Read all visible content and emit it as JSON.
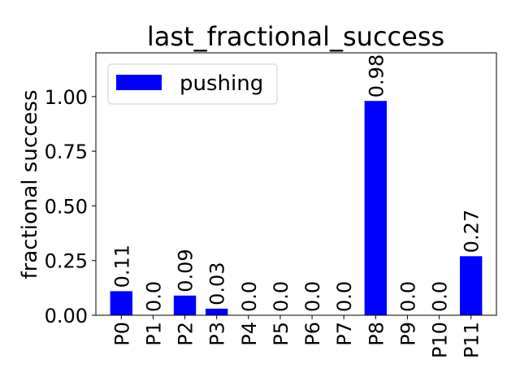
{
  "chart_data": {
    "type": "bar",
    "title": "last_fractional_success",
    "xlabel": "",
    "ylabel": "fractional success",
    "categories": [
      "P0",
      "P1",
      "P2",
      "P3",
      "P4",
      "P5",
      "P6",
      "P7",
      "P8",
      "P9",
      "P10",
      "P11"
    ],
    "series": [
      {
        "name": "pushing",
        "color": "#0000ff",
        "values": [
          0.11,
          0.0,
          0.09,
          0.03,
          0.0,
          0.0,
          0.0,
          0.0,
          0.98,
          0.0,
          0.0,
          0.27
        ],
        "labels": [
          "0.11",
          "0.0",
          "0.09",
          "0.03",
          "0.0",
          "0.0",
          "0.0",
          "0.0",
          "0.98",
          "0.0",
          "0.0",
          "0.27"
        ]
      }
    ],
    "ylim": [
      0,
      1.2
    ],
    "yticks": [
      0.0,
      0.25,
      0.5,
      0.75,
      1.0
    ],
    "ytick_labels": [
      "0.00",
      "0.25",
      "0.50",
      "0.75",
      "1.00"
    ],
    "legend_position": "top-left",
    "grid": false
  }
}
